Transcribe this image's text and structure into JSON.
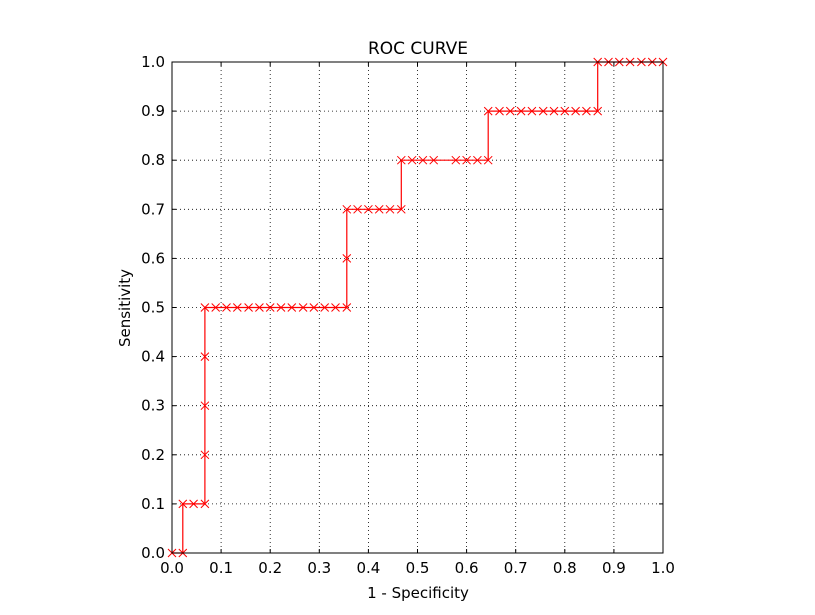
{
  "chart_data": {
    "type": "line",
    "title": "ROC CURVE",
    "xlabel": "1 - Specificity",
    "ylabel": "Sensitivity",
    "xlim": [
      0.0,
      1.0
    ],
    "ylim": [
      0.0,
      1.0
    ],
    "grid": true,
    "series": [
      {
        "color": "#ff0000",
        "marker": "x",
        "drawstyle": "steps",
        "points": [
          [
            0.0,
            0.0
          ],
          [
            0.022,
            0.0
          ],
          [
            0.022,
            0.1
          ],
          [
            0.044,
            0.1
          ],
          [
            0.067,
            0.1
          ],
          [
            0.067,
            0.2
          ],
          [
            0.067,
            0.3
          ],
          [
            0.067,
            0.4
          ],
          [
            0.067,
            0.5
          ],
          [
            0.089,
            0.5
          ],
          [
            0.111,
            0.5
          ],
          [
            0.133,
            0.5
          ],
          [
            0.156,
            0.5
          ],
          [
            0.178,
            0.5
          ],
          [
            0.2,
            0.5
          ],
          [
            0.222,
            0.5
          ],
          [
            0.244,
            0.5
          ],
          [
            0.267,
            0.5
          ],
          [
            0.289,
            0.5
          ],
          [
            0.311,
            0.5
          ],
          [
            0.333,
            0.5
          ],
          [
            0.356,
            0.5
          ],
          [
            0.356,
            0.6
          ],
          [
            0.356,
            0.7
          ],
          [
            0.378,
            0.7
          ],
          [
            0.4,
            0.7
          ],
          [
            0.422,
            0.7
          ],
          [
            0.444,
            0.7
          ],
          [
            0.467,
            0.7
          ],
          [
            0.467,
            0.8
          ],
          [
            0.489,
            0.8
          ],
          [
            0.511,
            0.8
          ],
          [
            0.533,
            0.8
          ],
          [
            0.578,
            0.8
          ],
          [
            0.6,
            0.8
          ],
          [
            0.622,
            0.8
          ],
          [
            0.644,
            0.8
          ],
          [
            0.644,
            0.9
          ],
          [
            0.667,
            0.9
          ],
          [
            0.689,
            0.9
          ],
          [
            0.711,
            0.9
          ],
          [
            0.733,
            0.9
          ],
          [
            0.756,
            0.9
          ],
          [
            0.778,
            0.9
          ],
          [
            0.8,
            0.9
          ],
          [
            0.822,
            0.9
          ],
          [
            0.844,
            0.9
          ],
          [
            0.867,
            0.9
          ],
          [
            0.867,
            1.0
          ],
          [
            0.889,
            1.0
          ],
          [
            0.911,
            1.0
          ],
          [
            0.933,
            1.0
          ],
          [
            0.956,
            1.0
          ],
          [
            0.978,
            1.0
          ],
          [
            1.0,
            1.0
          ]
        ]
      }
    ],
    "xticks": [
      0.0,
      0.1,
      0.2,
      0.3,
      0.4,
      0.5,
      0.6,
      0.7,
      0.8,
      0.9,
      1.0
    ],
    "yticks": [
      0.0,
      0.1,
      0.2,
      0.3,
      0.4,
      0.5,
      0.6,
      0.7,
      0.8,
      0.9,
      1.0
    ],
    "xtick_labels": [
      "0.0",
      "0.1",
      "0.2",
      "0.3",
      "0.4",
      "0.5",
      "0.6",
      "0.7",
      "0.8",
      "0.9",
      "1.0"
    ],
    "ytick_labels": [
      "0.0",
      "0.1",
      "0.2",
      "0.3",
      "0.4",
      "0.5",
      "0.6",
      "0.7",
      "0.8",
      "0.9",
      "1.0"
    ]
  }
}
